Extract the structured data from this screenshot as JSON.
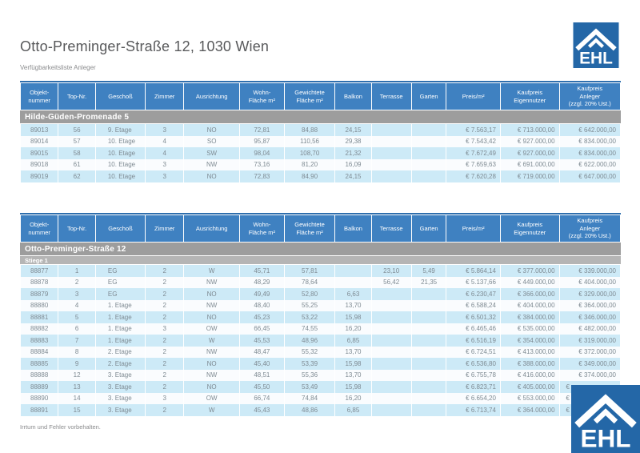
{
  "page": {
    "title": "Otto-Preminger-Straße 12, 1030 Wien",
    "subtitle": "Verfügbarkeitsliste Anleger",
    "footer": "Irrtum und Fehler vorbehalten.",
    "logo_text": "EHL"
  },
  "colors": {
    "header_blue": "#3f81c1",
    "logo_blue": "#2467a7",
    "banner_gray": "#9d9d9d",
    "subbanner_gray": "#b5b5b5",
    "row_blue": "#cdeaf7",
    "row_alt": "#fafcfe"
  },
  "columns": [
    "Objekt-\nnummer",
    "Top-Nr.",
    "Geschoß",
    "Zimmer",
    "Ausrichtung",
    "Wohn-\nFläche m²",
    "Gewichtete\nFläche m²",
    "Balkon",
    "Terrasse",
    "Garten",
    "Preis/m²",
    "Kaufpreis\nEigennutzer",
    "Kaufpreis\nAnleger\n(zzgl. 20% Ust.)"
  ],
  "tables": [
    {
      "banner": "Hilde-Güden-Promenade 5",
      "subbanner": null,
      "rows": [
        [
          "89013",
          "56",
          "9. Etage",
          "3",
          "NO",
          "72,81",
          "84,88",
          "24,15",
          "",
          "",
          "€ 7.563,17",
          "€ 713.000,00",
          "€ 642.000,00"
        ],
        [
          "89014",
          "57",
          "10. Etage",
          "4",
          "SO",
          "95,87",
          "110,56",
          "29,38",
          "",
          "",
          "€ 7.543,42",
          "€ 927.000,00",
          "€ 834.000,00"
        ],
        [
          "89015",
          "58",
          "10. Etage",
          "4",
          "SW",
          "98,04",
          "108,70",
          "21,32",
          "",
          "",
          "€ 7.672,49",
          "€ 927.000,00",
          "€ 834.000,00"
        ],
        [
          "89018",
          "61",
          "10. Etage",
          "3",
          "NW",
          "73,16",
          "81,20",
          "16,09",
          "",
          "",
          "€ 7.659,63",
          "€ 691.000,00",
          "€ 622.000,00"
        ],
        [
          "89019",
          "62",
          "10. Etage",
          "3",
          "NO",
          "72,83",
          "84,90",
          "24,15",
          "",
          "",
          "€ 7.620,28",
          "€ 719.000,00",
          "€ 647.000,00"
        ]
      ]
    },
    {
      "banner": "Otto-Preminger-Straße 12",
      "subbanner": "Stiege 1",
      "rows": [
        [
          "88877",
          "1",
          "EG",
          "2",
          "W",
          "45,71",
          "57,81",
          "",
          "23,10",
          "5,49",
          "€ 5.864,14",
          "€ 377.000,00",
          "€ 339.000,00"
        ],
        [
          "88878",
          "2",
          "EG",
          "2",
          "NW",
          "48,29",
          "78,64",
          "",
          "56,42",
          "21,35",
          "€ 5.137,66",
          "€ 449.000,00",
          "€ 404.000,00"
        ],
        [
          "88879",
          "3",
          "EG",
          "2",
          "NO",
          "49,49",
          "52,80",
          "6,63",
          "",
          "",
          "€ 6.230,47",
          "€ 366.000,00",
          "€ 329.000,00"
        ],
        [
          "88880",
          "4",
          "1. Etage",
          "2",
          "NW",
          "48,40",
          "55,25",
          "13,70",
          "",
          "",
          "€ 6.588,24",
          "€ 404.000,00",
          "€ 364.000,00"
        ],
        [
          "88881",
          "5",
          "1. Etage",
          "2",
          "NO",
          "45,23",
          "53,22",
          "15,98",
          "",
          "",
          "€ 6.501,32",
          "€ 384.000,00",
          "€ 346.000,00"
        ],
        [
          "88882",
          "6",
          "1. Etage",
          "3",
          "OW",
          "66,45",
          "74,55",
          "16,20",
          "",
          "",
          "€ 6.465,46",
          "€ 535.000,00",
          "€ 482.000,00"
        ],
        [
          "88883",
          "7",
          "1. Etage",
          "2",
          "W",
          "45,53",
          "48,96",
          "6,85",
          "",
          "",
          "€ 6.516,19",
          "€ 354.000,00",
          "€ 319.000,00"
        ],
        [
          "88884",
          "8",
          "2. Etage",
          "2",
          "NW",
          "48,47",
          "55,32",
          "13,70",
          "",
          "",
          "€ 6.724,51",
          "€ 413.000,00",
          "€ 372.000,00"
        ],
        [
          "88885",
          "9",
          "2. Etage",
          "2",
          "NO",
          "45,40",
          "53,39",
          "15,98",
          "",
          "",
          "€ 6.536,80",
          "€ 388.000,00",
          "€ 349.000,00"
        ],
        [
          "88888",
          "12",
          "3. Etage",
          "2",
          "NW",
          "48,51",
          "55,36",
          "13,70",
          "",
          "",
          "€ 6.755,78",
          "€ 416.000,00",
          "€ 374.000,00"
        ],
        [
          "88889",
          "13",
          "3. Etage",
          "2",
          "NO",
          "45,50",
          "53,49",
          "15,98",
          "",
          "",
          "€ 6.823,71",
          "€ 405.000,00",
          "€"
        ],
        [
          "88890",
          "14",
          "3. Etage",
          "3",
          "OW",
          "66,74",
          "74,84",
          "16,20",
          "",
          "",
          "€ 6.654,20",
          "€ 553.000,00",
          "€"
        ],
        [
          "88891",
          "15",
          "3. Etage",
          "2",
          "W",
          "45,43",
          "48,86",
          "6,85",
          "",
          "",
          "€ 6.713,74",
          "€ 364.000,00",
          "€"
        ]
      ]
    }
  ]
}
